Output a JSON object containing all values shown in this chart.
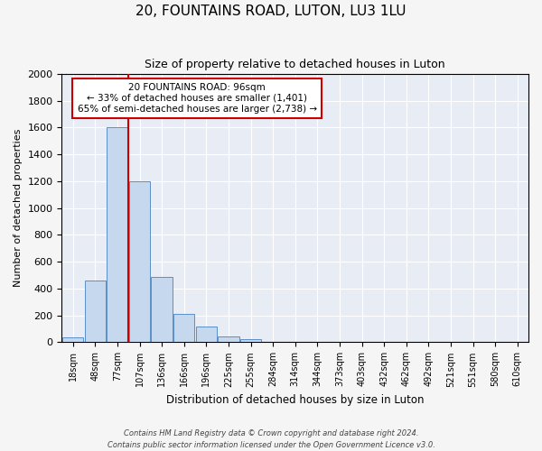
{
  "title": "20, FOUNTAINS ROAD, LUTON, LU3 1LU",
  "subtitle": "Size of property relative to detached houses in Luton",
  "xlabel": "Distribution of detached houses by size in Luton",
  "ylabel": "Number of detached properties",
  "bar_labels": [
    "18sqm",
    "48sqm",
    "77sqm",
    "107sqm",
    "136sqm",
    "166sqm",
    "196sqm",
    "225sqm",
    "255sqm",
    "284sqm",
    "314sqm",
    "344sqm",
    "373sqm",
    "403sqm",
    "432sqm",
    "462sqm",
    "492sqm",
    "521sqm",
    "551sqm",
    "580sqm",
    "610sqm"
  ],
  "bar_values": [
    35,
    460,
    1600,
    1200,
    490,
    210,
    120,
    45,
    20,
    0,
    0,
    0,
    0,
    0,
    0,
    0,
    0,
    0,
    0,
    0,
    0
  ],
  "bar_color": "#c5d8ed",
  "bar_edge_color": "#5b8fc9",
  "fig_bg_color": "#f5f5f5",
  "ax_bg_color": "#e8edf5",
  "grid_color": "#ffffff",
  "ylim": [
    0,
    2000
  ],
  "yticks": [
    0,
    200,
    400,
    600,
    800,
    1000,
    1200,
    1400,
    1600,
    1800,
    2000
  ],
  "annotation_title": "20 FOUNTAINS ROAD: 96sqm",
  "annotation_line1": "← 33% of detached houses are smaller (1,401)",
  "annotation_line2": "65% of semi-detached houses are larger (2,738) →",
  "annotation_box_color": "#ffffff",
  "annotation_box_edge": "#cc0000",
  "red_line_color": "#cc0000",
  "footer1": "Contains HM Land Registry data © Crown copyright and database right 2024.",
  "footer2": "Contains public sector information licensed under the Open Government Licence v3.0."
}
